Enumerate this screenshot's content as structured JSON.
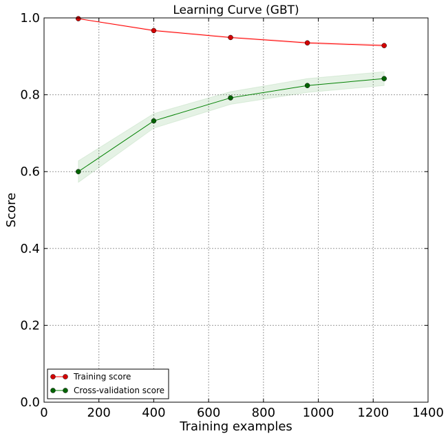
{
  "chart_data": {
    "type": "line",
    "title": "Learning Curve (GBT)",
    "xlabel": "Training examples",
    "ylabel": "Score",
    "xlim": [
      0,
      1400
    ],
    "ylim": [
      0.0,
      1.0
    ],
    "xticks": [
      "0",
      "200",
      "400",
      "600",
      "800",
      "1000",
      "1200",
      "1400"
    ],
    "yticks": [
      "0.0",
      "0.2",
      "0.4",
      "0.6",
      "0.8",
      "1.0"
    ],
    "grid": true,
    "legend_position": "lower-left",
    "x": [
      125,
      400,
      680,
      960,
      1240
    ],
    "series": [
      {
        "name": "Training score",
        "color": "#ff0000",
        "marker_color": "#d40000",
        "values": [
          0.998,
          0.967,
          0.949,
          0.935,
          0.928
        ],
        "band_lower": [
          0.998,
          0.966,
          0.948,
          0.933,
          0.926
        ],
        "band_upper": [
          0.999,
          0.969,
          0.951,
          0.937,
          0.931
        ]
      },
      {
        "name": "Cross-validation score",
        "color": "#008000",
        "marker_color": "#006400",
        "values": [
          0.6,
          0.732,
          0.792,
          0.824,
          0.842
        ],
        "band_lower": [
          0.572,
          0.713,
          0.775,
          0.806,
          0.824
        ],
        "band_upper": [
          0.628,
          0.751,
          0.808,
          0.842,
          0.86
        ]
      }
    ]
  }
}
